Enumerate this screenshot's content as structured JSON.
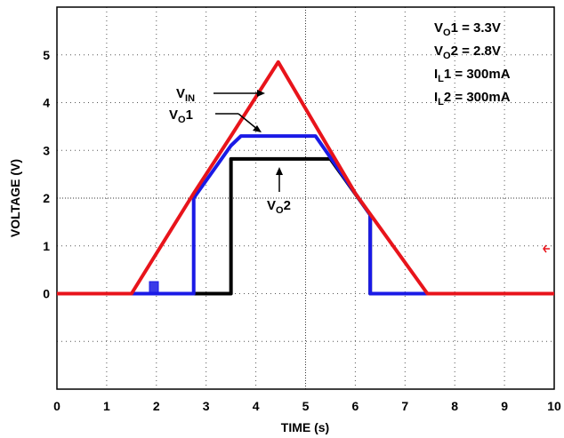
{
  "chart_data": {
    "type": "line",
    "xlabel": "TIME (s)",
    "ylabel": "VOLTAGE (V)",
    "xlim": [
      0,
      10
    ],
    "ylim": [
      -2,
      6
    ],
    "x_ticks": [
      0,
      1,
      2,
      3,
      4,
      5,
      6,
      7,
      8,
      9,
      10
    ],
    "y_ticks": [
      0,
      1,
      2,
      3,
      4,
      5
    ],
    "grid": true,
    "series": [
      {
        "name": "VIN",
        "color": "#e8141b",
        "points": [
          [
            0,
            0
          ],
          [
            1.5,
            0
          ],
          [
            2.75,
            2.1
          ],
          [
            3.5,
            3.3
          ],
          [
            4.45,
            4.85
          ],
          [
            6.0,
            2.1
          ],
          [
            7.45,
            0
          ],
          [
            10,
            0
          ]
        ]
      },
      {
        "name": "VO1",
        "color": "#1a1ae6",
        "points": [
          [
            0,
            0
          ],
          [
            2.75,
            0
          ],
          [
            2.75,
            2.0
          ],
          [
            3.5,
            3.1
          ],
          [
            3.7,
            3.3
          ],
          [
            5.2,
            3.3
          ],
          [
            6.3,
            1.65
          ],
          [
            6.3,
            0
          ],
          [
            10,
            0
          ]
        ]
      },
      {
        "name": "VO2",
        "color": "#000000",
        "points": [
          [
            0,
            0
          ],
          [
            3.5,
            0
          ],
          [
            3.5,
            2.82
          ],
          [
            5.5,
            2.82
          ],
          [
            6.3,
            1.65
          ],
          [
            6.3,
            0
          ],
          [
            10,
            0
          ]
        ]
      }
    ],
    "labels": {
      "vin": {
        "main": "V",
        "sub": "IN"
      },
      "vo1": {
        "main": "V",
        "sub": "O",
        "rest": "1"
      },
      "vo2": {
        "main": "V",
        "sub": "O",
        "rest": "2"
      }
    },
    "legend_box": {
      "position": "top-right",
      "lines": [
        {
          "main": "V",
          "sub": "O",
          "rest": "1 = 3.3V"
        },
        {
          "main": "V",
          "sub": "O",
          "rest": "2 = 2.8V"
        },
        {
          "main": "I",
          "sub": "L",
          "rest": "1 = 300mA"
        },
        {
          "main": "I",
          "sub": "L",
          "rest": "2 = 300mA"
        }
      ]
    }
  }
}
